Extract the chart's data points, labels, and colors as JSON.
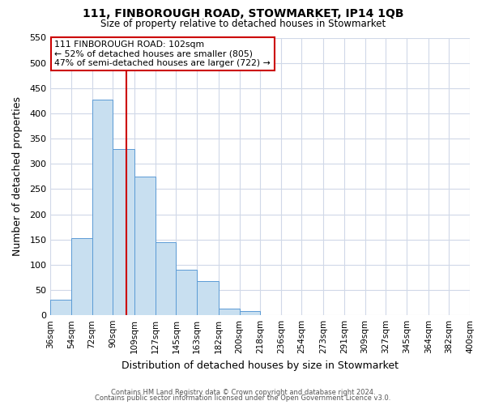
{
  "title1": "111, FINBOROUGH ROAD, STOWMARKET, IP14 1QB",
  "title2": "Size of property relative to detached houses in Stowmarket",
  "xlabel": "Distribution of detached houses by size in Stowmarket",
  "ylabel": "Number of detached properties",
  "bin_labels": [
    "36sqm",
    "54sqm",
    "72sqm",
    "90sqm",
    "109sqm",
    "127sqm",
    "145sqm",
    "163sqm",
    "182sqm",
    "200sqm",
    "218sqm",
    "236sqm",
    "254sqm",
    "273sqm",
    "291sqm",
    "309sqm",
    "327sqm",
    "345sqm",
    "364sqm",
    "382sqm",
    "400sqm"
  ],
  "bin_edges": [
    36,
    54,
    72,
    90,
    109,
    127,
    145,
    163,
    182,
    200,
    218,
    236,
    254,
    273,
    291,
    309,
    327,
    345,
    364,
    382,
    400
  ],
  "bar_heights": [
    30,
    153,
    428,
    330,
    275,
    145,
    90,
    67,
    13,
    8,
    0,
    0,
    0,
    0,
    0,
    0,
    0,
    0,
    0,
    1
  ],
  "bar_color": "#c8dff0",
  "bar_edge_color": "#5b9bd5",
  "vline_x": 102,
  "vline_color": "#cc0000",
  "ylim": [
    0,
    550
  ],
  "annotation_line1": "111 FINBOROUGH ROAD: 102sqm",
  "annotation_line2": "← 52% of detached houses are smaller (805)",
  "annotation_line3": "47% of semi-detached houses are larger (722) →",
  "footer1": "Contains HM Land Registry data © Crown copyright and database right 2024.",
  "footer2": "Contains public sector information licensed under the Open Government Licence v3.0.",
  "bg_color": "#ffffff",
  "grid_color": "#d0d8e8",
  "title_fontsize": 10,
  "subtitle_fontsize": 8.5
}
